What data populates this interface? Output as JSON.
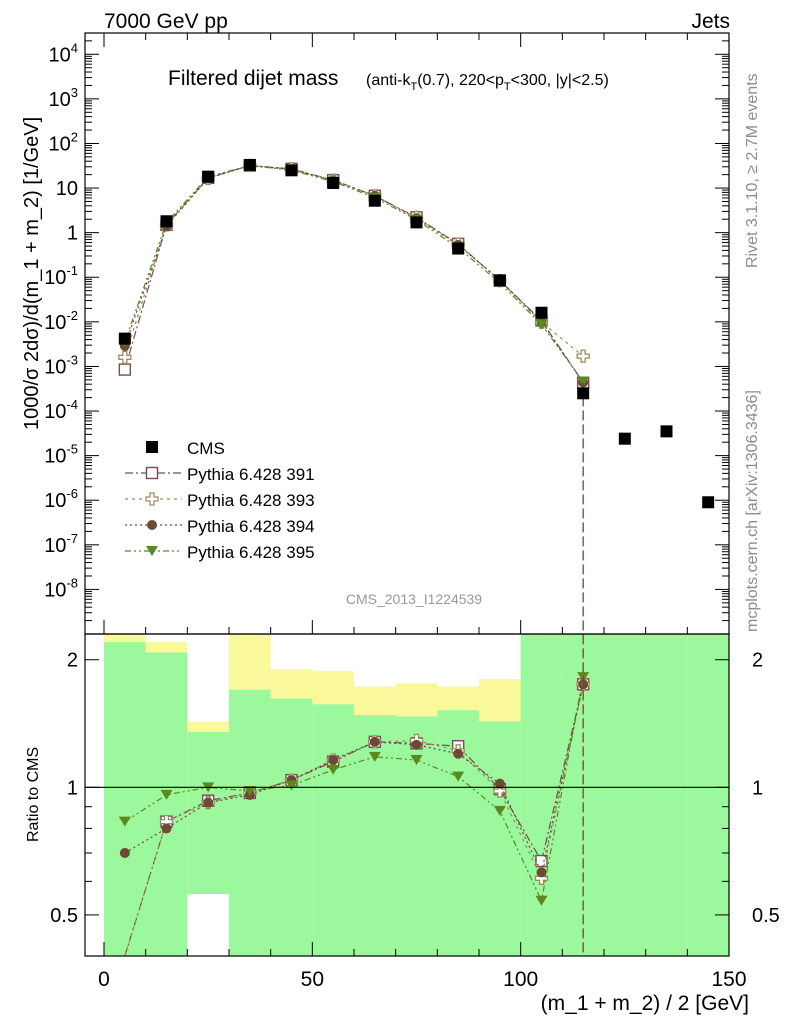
{
  "header": {
    "left": "7000 GeV pp",
    "right": "Jets",
    "side_top": "Rivet 3.1.10, ≥ 2.7M events",
    "side_bottom": "mcplots.cern.ch [arXiv:1306.3436]"
  },
  "chart_data": {
    "type": "scatter",
    "title_main": "Filtered dijet mass",
    "title_sub_parts": [
      "(anti-k",
      "T",
      "(0.7), 220<p",
      "T",
      "<300, |y|<2.5)"
    ],
    "watermark": "CMS_2013_I1224539",
    "ylabel": "1000/σ 2dσ)/d(m_1 + m_2) [1/GeV]",
    "ratio_ylabel": "Ratio to CMS",
    "xlabel": "(m_1 + m_2) / 2 [GeV]",
    "xlim": [
      0,
      150
    ],
    "ylim": [
      1e-09,
      30000.0
    ],
    "ratio_ylim": [
      0.4,
      2.3
    ],
    "log_y": true,
    "x_ticks": [
      "0",
      "50",
      "100",
      "150"
    ],
    "y_ticks": [
      "10^4",
      "10^3",
      "10^2",
      "10",
      "1",
      "10^-1",
      "10^-2",
      "10^-3",
      "10^-4",
      "10^-5",
      "10^-6",
      "10^-7",
      "10^-8"
    ],
    "ratio_ticks": [
      "2",
      "1",
      "0.5"
    ],
    "bins": [
      [
        0,
        10
      ],
      [
        10,
        20
      ],
      [
        20,
        30
      ],
      [
        30,
        40
      ],
      [
        40,
        50
      ],
      [
        50,
        60
      ],
      [
        60,
        70
      ],
      [
        70,
        80
      ],
      [
        80,
        90
      ],
      [
        90,
        100
      ],
      [
        100,
        110
      ],
      [
        110,
        120
      ],
      [
        120,
        130
      ],
      [
        130,
        140
      ],
      [
        140,
        150
      ]
    ],
    "cms": {
      "name": "CMS",
      "x": [
        5,
        15,
        25,
        35,
        45,
        55,
        65,
        75,
        85,
        95,
        105,
        115,
        125,
        135,
        145
      ],
      "y": [
        0.0042,
        1.8,
        18,
        33,
        25,
        13,
        5.2,
        1.7,
        0.44,
        0.085,
        0.016,
        0.00025,
        2.4e-05,
        3.5e-05,
        9e-07
      ],
      "color": "#000000"
    },
    "series": [
      {
        "name": "Pythia 6.428 391",
        "marker": "open-square",
        "color": "#7a4a57",
        "x": [
          5,
          15,
          25,
          35,
          45,
          55,
          65,
          75,
          85,
          95,
          105,
          115
        ],
        "y": [
          0.00085,
          1.5,
          17,
          32,
          27,
          15,
          6.7,
          2.2,
          0.56,
          0.084,
          0.0107,
          0.00043
        ],
        "ratio": [
          0.2,
          0.83,
          0.93,
          0.97,
          1.04,
          1.15,
          1.28,
          1.27,
          1.25,
          0.99,
          0.67,
          1.75
        ]
      },
      {
        "name": "Pythia 6.428 393",
        "marker": "open-cross",
        "color": "#9c8c5a",
        "x": [
          5,
          15,
          25,
          35,
          45,
          55,
          65,
          75,
          85,
          95,
          105,
          115
        ],
        "y": [
          0.0016,
          1.5,
          16.5,
          32,
          27,
          15,
          6.7,
          2.2,
          0.55,
          0.084,
          0.0098,
          0.0017
        ],
        "ratio": [
          0.38,
          0.83,
          0.92,
          0.97,
          1.04,
          1.16,
          1.28,
          1.29,
          1.22,
          0.98,
          0.61,
          1.75
        ]
      },
      {
        "name": "Pythia 6.428 394",
        "marker": "filled-circle",
        "color": "#6b4a36",
        "x": [
          5,
          15,
          25,
          35,
          45,
          55,
          65,
          75,
          85,
          95,
          105,
          115
        ],
        "y": [
          0.0029,
          1.4,
          16.5,
          32,
          26,
          15,
          6.7,
          2.1,
          0.53,
          0.087,
          0.01,
          0.00044
        ],
        "ratio": [
          0.7,
          0.8,
          0.92,
          0.96,
          1.04,
          1.16,
          1.28,
          1.26,
          1.2,
          1.02,
          0.63,
          1.75
        ]
      },
      {
        "name": "Pythia 6.428 395",
        "marker": "filled-triangle",
        "color": "#5a8a1e",
        "x": [
          5,
          15,
          25,
          35,
          45,
          55,
          65,
          75,
          85,
          95,
          105,
          115
        ],
        "y": [
          0.0035,
          1.7,
          18,
          32,
          25,
          14,
          6.1,
          1.95,
          0.46,
          0.075,
          0.0087,
          0.00046
        ],
        "ratio": [
          0.83,
          0.96,
          1.0,
          0.98,
          1.01,
          1.1,
          1.18,
          1.16,
          1.06,
          0.88,
          0.54,
          1.82
        ]
      }
    ],
    "ratio_bands_inner": [
      [
        0.4,
        2.2
      ],
      [
        0.4,
        2.08
      ],
      [
        0.56,
        1.35
      ],
      [
        0.4,
        1.7
      ],
      [
        0.4,
        1.62
      ],
      [
        0.4,
        1.57
      ],
      [
        0.4,
        1.48
      ],
      [
        0.4,
        1.47
      ],
      [
        0.4,
        1.52
      ],
      [
        0.4,
        1.43
      ],
      [
        0.4,
        2.3
      ],
      [
        0.4,
        2.3
      ],
      [
        0.4,
        2.3
      ],
      [
        0.4,
        2.3
      ],
      [
        0.4,
        2.3
      ]
    ],
    "ratio_bands_outer": [
      [
        0.4,
        2.3
      ],
      [
        0.4,
        2.2
      ],
      [
        0.4,
        1.43
      ],
      [
        0.4,
        2.3
      ],
      [
        0.4,
        1.9
      ],
      [
        0.4,
        1.88
      ],
      [
        0.4,
        1.73
      ],
      [
        0.4,
        1.76
      ],
      [
        0.4,
        1.73
      ],
      [
        0.4,
        1.8
      ],
      [
        0.4,
        1.8
      ],
      [
        0.4,
        2.3
      ],
      [
        0.4,
        2.3
      ],
      [
        0.4,
        2.3
      ],
      [
        0.4,
        2.3
      ]
    ],
    "ratio_white_gaps": [
      [
        0.4,
        0.4
      ],
      [
        0.4,
        0.4
      ],
      [
        0.4,
        0.56
      ],
      [
        0.4,
        0.4
      ],
      [
        0.4,
        0.4
      ],
      [
        0.4,
        0.4
      ],
      [
        0.4,
        0.4
      ],
      [
        0.4,
        0.4
      ],
      [
        0.4,
        0.4
      ],
      [
        0.4,
        0.4
      ],
      [
        0.4,
        0.4
      ],
      [
        0.4,
        0.4
      ],
      [
        0.4,
        0.4
      ],
      [
        0.4,
        0.4
      ],
      [
        0.4,
        0.4
      ]
    ],
    "ratio_band_colors": {
      "inner": "#9cf89c",
      "outer": "#f9f99c"
    }
  }
}
